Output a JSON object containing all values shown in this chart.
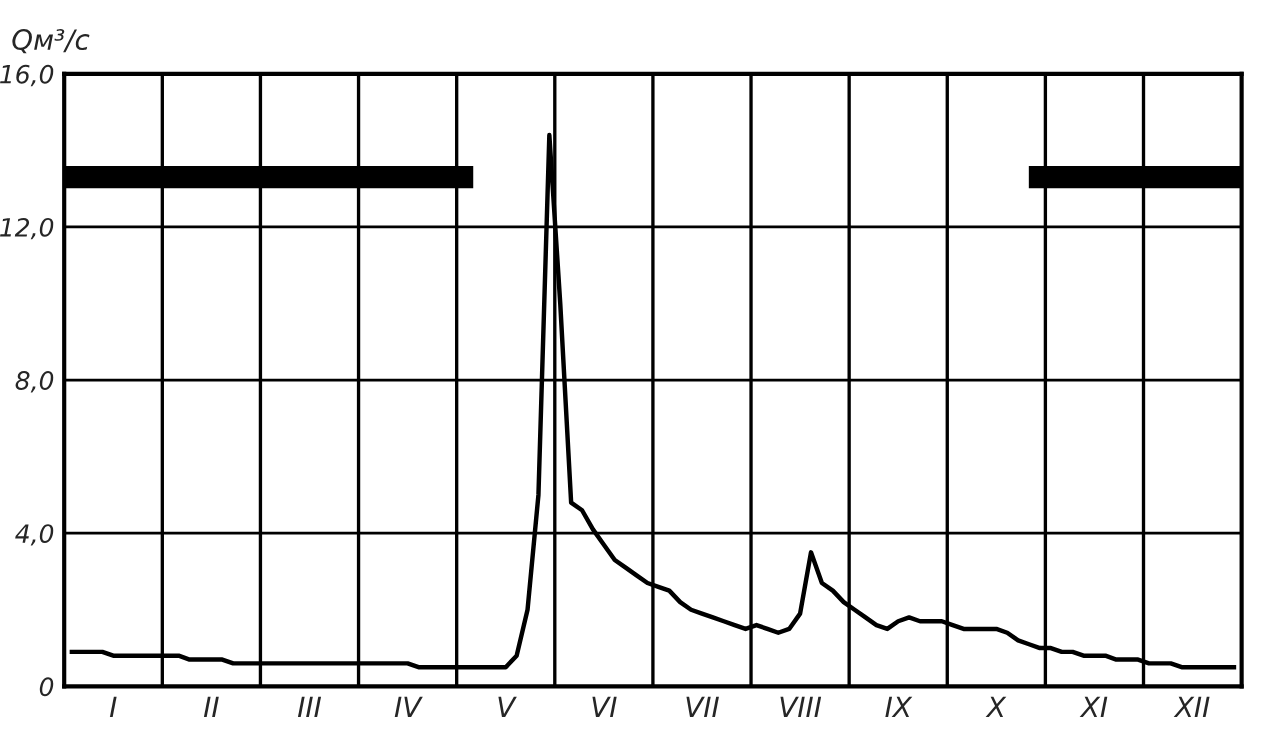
{
  "chart_data": {
    "type": "line",
    "ylabel": "Qм³/с",
    "categories": [
      null,
      null,
      null,
      null,
      "I",
      null,
      null,
      null,
      null,
      null,
      null,
      null,
      null,
      "II",
      null,
      null,
      null,
      null,
      null,
      null,
      null,
      null,
      "III",
      null,
      null,
      null,
      null,
      null,
      null,
      null,
      null,
      "IV",
      null,
      null,
      null,
      null,
      null,
      null,
      null,
      null,
      "V",
      null,
      null,
      null,
      null,
      null,
      null,
      null,
      null,
      "VI",
      null,
      null,
      null,
      null,
      null,
      null,
      null,
      null,
      "VII",
      null,
      null,
      null,
      null,
      null,
      null,
      null,
      null,
      "VIII",
      null,
      null,
      null,
      null,
      null,
      null,
      null,
      null,
      "IX",
      null,
      null,
      null,
      null,
      null,
      null,
      null,
      null,
      "X",
      null,
      null,
      null,
      null,
      null,
      null,
      null,
      null,
      "XI",
      null,
      null,
      null,
      null,
      null,
      null,
      null,
      null,
      "XII",
      null,
      null,
      null,
      null
    ],
    "ylim": [
      0,
      16
    ],
    "yticks": [
      0,
      {
        "value": 4,
        "label": "4,0"
      },
      {
        "value": 8,
        "label": "8,0"
      },
      {
        "value": 12,
        "label": "12,0"
      },
      {
        "value": 16,
        "label": "16,0"
      }
    ],
    "grid": true,
    "series": [
      {
        "color": "#000000",
        "values": [
          0.9,
          0.9,
          0.9,
          0.9,
          0.8,
          0.8,
          0.8,
          0.8,
          0.8,
          0.8,
          0.8,
          0.7,
          0.7,
          0.7,
          0.7,
          0.6,
          0.6,
          0.6,
          0.6,
          0.6,
          0.6,
          0.6,
          0.6,
          0.6,
          0.6,
          0.6,
          0.6,
          0.6,
          0.6,
          0.6,
          0.6,
          0.6,
          0.5,
          0.5,
          0.5,
          0.5,
          0.5,
          0.5,
          0.5,
          0.5,
          0.5,
          0.8,
          2.0,
          5.0,
          14.4,
          10.0,
          4.8,
          4.6,
          4.1,
          3.7,
          3.3,
          3.1,
          2.9,
          2.7,
          2.6,
          2.5,
          2.2,
          2.0,
          1.9,
          1.8,
          1.7,
          1.6,
          1.5,
          1.6,
          1.5,
          1.4,
          1.5,
          1.9,
          3.5,
          2.7,
          2.5,
          2.2,
          2.0,
          1.8,
          1.6,
          1.5,
          1.7,
          1.8,
          1.7,
          1.7,
          1.7,
          1.6,
          1.5,
          1.5,
          1.5,
          1.5,
          1.4,
          1.2,
          1.1,
          1.0,
          1.0,
          0.9,
          0.9,
          0.8,
          0.8,
          0.8,
          0.7,
          0.7,
          0.7,
          0.6,
          0.6,
          0.6,
          0.5,
          0.5,
          0.5,
          0.5,
          0.5,
          0.5
        ]
      },
      {
        "color": "#000000",
        "values": [
          13.3,
          13.3,
          13.3,
          13.3,
          13.3,
          13.3,
          13.3,
          13.3,
          13.3,
          13.3,
          13.3,
          13.3,
          13.3,
          13.3,
          13.3,
          13.3,
          13.3,
          13.3,
          13.3,
          13.3,
          13.3,
          13.3,
          13.3,
          13.3,
          13.3,
          13.3,
          13.3,
          13.3,
          13.3,
          13.3,
          13.3,
          13.3,
          13.3,
          13.3,
          13.3,
          13.3,
          13.3,
          null,
          null,
          null,
          null,
          null,
          null,
          null,
          null,
          null,
          null,
          null,
          null,
          null,
          null,
          null,
          null,
          null,
          null,
          null,
          null,
          null,
          null,
          null,
          null,
          null,
          null,
          null,
          null,
          null,
          null,
          null,
          null,
          null,
          null,
          null,
          null,
          null,
          null,
          null,
          null,
          null,
          null,
          null,
          null,
          null,
          null,
          null,
          null,
          null,
          null,
          null,
          null,
          null,
          null,
          null,
          null,
          null,
          null,
          null,
          null,
          null,
          null,
          null,
          null,
          null,
          null,
          null,
          null,
          null,
          null,
          null
        ]
      },
      {
        "color": "#000000",
        "values": [
          null,
          null,
          null,
          null,
          null,
          null,
          null,
          null,
          null,
          null,
          null,
          null,
          null,
          null,
          null,
          null,
          null,
          null,
          null,
          null,
          null,
          null,
          null,
          null,
          null,
          null,
          null,
          null,
          null,
          null,
          null,
          null,
          null,
          null,
          null,
          null,
          null,
          null,
          null,
          null,
          null,
          null,
          null,
          null,
          null,
          null,
          null,
          null,
          null,
          null,
          null,
          null,
          null,
          null,
          null,
          null,
          null,
          null,
          null,
          null,
          null,
          null,
          null,
          null,
          null,
          null,
          null,
          null,
          null,
          null,
          null,
          null,
          null,
          null,
          null,
          null,
          null,
          null,
          null,
          null,
          null,
          null,
          null,
          null,
          null,
          null,
          null,
          null,
          null,
          13.3,
          13.3,
          13.3,
          13.3,
          13.3,
          13.3,
          13.3,
          13.3,
          13.3,
          13.3,
          13.3,
          13.3,
          13.3,
          13.3,
          13.3,
          13.3,
          13.3,
          13.3,
          13.3
        ]
      }
    ]
  }
}
